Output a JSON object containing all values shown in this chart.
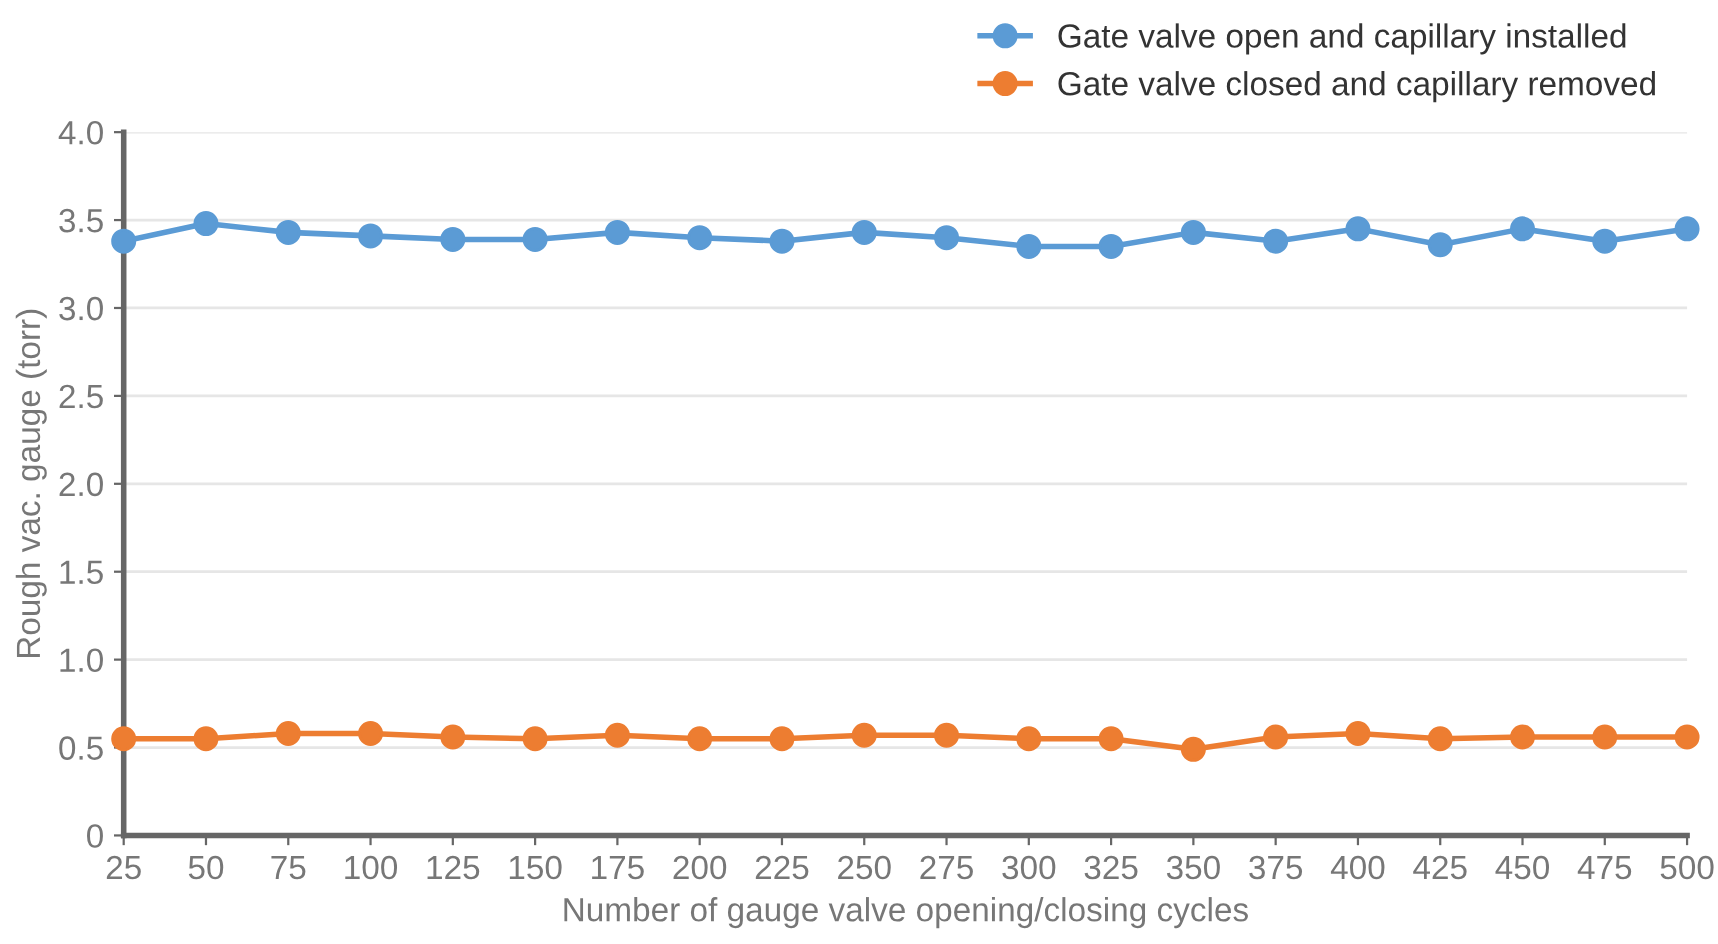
{
  "chart_data": {
    "type": "line",
    "xlabel": "Number of gauge valve opening/closing cycles",
    "ylabel": "Rough vac. gauge (torr)",
    "x": [
      25,
      50,
      75,
      100,
      125,
      150,
      175,
      200,
      225,
      250,
      275,
      300,
      325,
      350,
      375,
      400,
      425,
      450,
      475,
      500
    ],
    "series": [
      {
        "name": "Gate valve open and capillary installed",
        "color": "#5b9bd5",
        "values": [
          3.38,
          3.48,
          3.43,
          3.41,
          3.39,
          3.39,
          3.43,
          3.4,
          3.38,
          3.43,
          3.4,
          3.35,
          3.35,
          3.43,
          3.38,
          3.45,
          3.36,
          3.45,
          3.38,
          3.45
        ]
      },
      {
        "name": "Gate valve closed and capillary removed",
        "color": "#ed7d31",
        "values": [
          0.55,
          0.55,
          0.58,
          0.58,
          0.56,
          0.55,
          0.57,
          0.55,
          0.55,
          0.57,
          0.57,
          0.55,
          0.55,
          0.49,
          0.56,
          0.58,
          0.55,
          0.56,
          0.56,
          0.56
        ]
      }
    ],
    "xlim": [
      25,
      500
    ],
    "xticks": [
      25,
      50,
      75,
      100,
      125,
      150,
      175,
      200,
      225,
      250,
      275,
      300,
      325,
      350,
      375,
      400,
      425,
      450,
      475,
      500
    ],
    "ylim": [
      0,
      4.0
    ],
    "yticks": [
      {
        "value": 0,
        "label": "0"
      },
      {
        "value": 0.5,
        "label": "0.5"
      },
      {
        "value": 1.0,
        "label": "1.0"
      },
      {
        "value": 1.5,
        "label": "1.5"
      },
      {
        "value": 2.0,
        "label": "2.0"
      },
      {
        "value": 2.5,
        "label": "2.5"
      },
      {
        "value": 3.0,
        "label": "3.0"
      },
      {
        "value": 3.5,
        "label": "3.5"
      },
      {
        "value": 4.0,
        "label": "4.0"
      }
    ],
    "grid": "y",
    "legend": "top right",
    "marker": "circle",
    "line_style": "solid"
  }
}
